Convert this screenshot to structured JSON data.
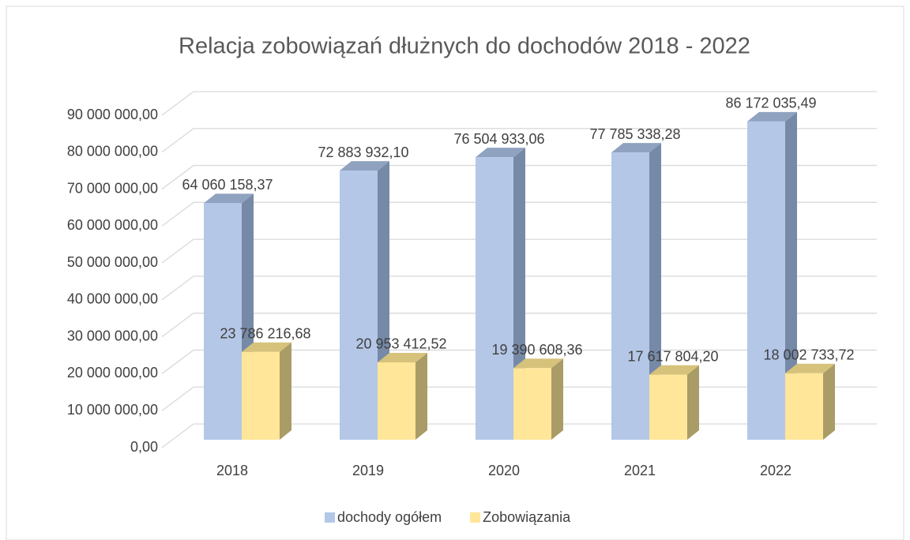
{
  "chart_data": {
    "type": "bar3d",
    "title": "Relacja zobowiązań dłużnych do dochodów 2018 - 2022",
    "categories": [
      "2018",
      "2019",
      "2020",
      "2021",
      "2022"
    ],
    "series": [
      {
        "name": "dochody ogółem",
        "color": "#b4c7e7",
        "values": [
          64060158.37,
          72883932.1,
          76504933.06,
          77785338.28,
          86172035.49
        ],
        "value_labels": [
          "64 060 158,37",
          "72 883 932,10",
          "76 504 933,06",
          "77 785 338,28",
          "86 172 035,49"
        ]
      },
      {
        "name": "Zobowiązania",
        "color": "#ffe699",
        "values": [
          23786216.68,
          20953412.52,
          19390608.36,
          17617804.2,
          18002733.72
        ],
        "value_labels": [
          "23 786 216,68",
          "20 953 412,52",
          "19 390 608,36",
          "17 617 804,20",
          "18 002 733,72"
        ]
      }
    ],
    "ylim": [
      0,
      90000000
    ],
    "yticks": [
      {
        "value": 0,
        "label": "0,00"
      },
      {
        "value": 10000000,
        "label": "10 000 000,00"
      },
      {
        "value": 20000000,
        "label": "20 000 000,00"
      },
      {
        "value": 30000000,
        "label": "30 000 000,00"
      },
      {
        "value": 40000000,
        "label": "40 000 000,00"
      },
      {
        "value": 50000000,
        "label": "50 000 000,00"
      },
      {
        "value": 60000000,
        "label": "60 000 000,00"
      },
      {
        "value": 70000000,
        "label": "70 000 000,00"
      },
      {
        "value": 80000000,
        "label": "80 000 000,00"
      },
      {
        "value": 90000000,
        "label": "90 000 000,00"
      }
    ],
    "grid": true,
    "legend": "bottom"
  }
}
